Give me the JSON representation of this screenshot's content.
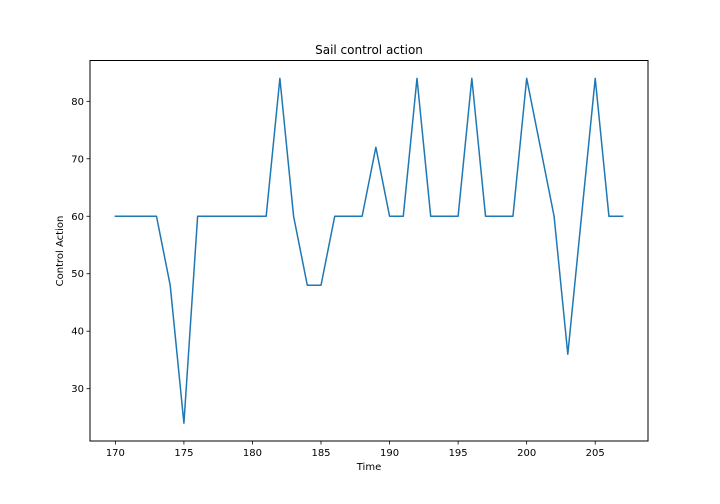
{
  "chart_data": {
    "type": "line",
    "title": "Sail control action",
    "xlabel": "Time",
    "ylabel": "Control Action",
    "xlim": [
      168.15,
      208.85
    ],
    "ylim": [
      20.9,
      87.1
    ],
    "xticks": [
      170,
      175,
      180,
      185,
      190,
      195,
      200,
      205
    ],
    "yticks": [
      30,
      40,
      50,
      60,
      70,
      80
    ],
    "grid": false,
    "series": [
      {
        "color": "#1f77b4",
        "x": [
          170,
          171,
          172,
          173,
          174,
          175,
          176,
          177,
          178,
          179,
          180,
          181,
          182,
          183,
          184,
          185,
          186,
          187,
          188,
          189,
          190,
          191,
          192,
          193,
          194,
          195,
          196,
          197,
          198,
          199,
          200,
          201,
          202,
          203,
          204,
          205,
          206,
          207
        ],
        "values": [
          60,
          60,
          60,
          60,
          48,
          24,
          60,
          60,
          60,
          60,
          60,
          60,
          84,
          60,
          48,
          48,
          60,
          60,
          60,
          72,
          60,
          60,
          84,
          60,
          60,
          60,
          84,
          60,
          60,
          60,
          84,
          72,
          60,
          36,
          60,
          84,
          60,
          60
        ]
      }
    ]
  }
}
